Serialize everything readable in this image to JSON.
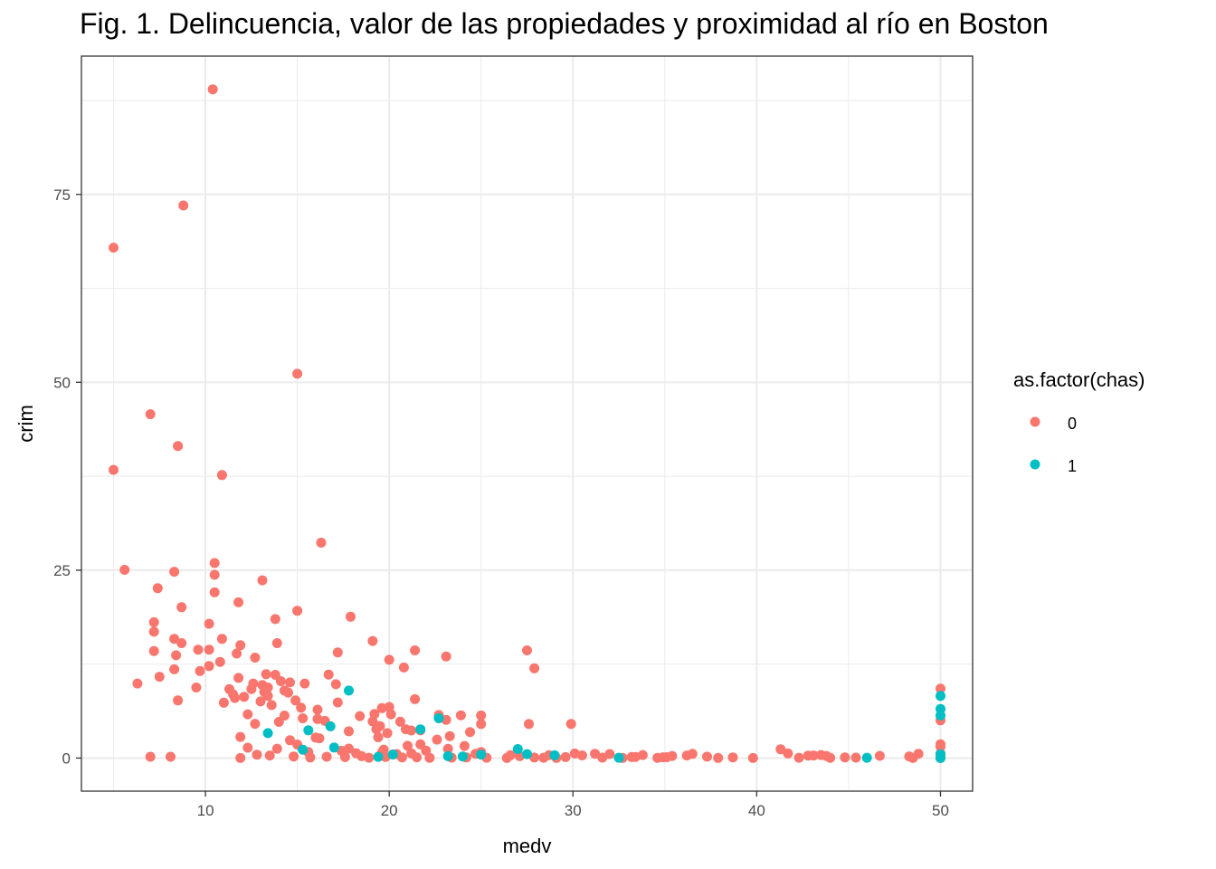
{
  "chart_data": {
    "type": "scatter",
    "title": "Fig. 1. Delincuencia, valor de las propiedades y proximidad al río en Boston",
    "xlabel": "medv",
    "ylabel": "crim",
    "xlim": [
      3.25,
      51.75
    ],
    "ylim": [
      -4.4,
      93.4
    ],
    "x_ticks": [
      10,
      20,
      30,
      40,
      50
    ],
    "y_ticks": [
      0,
      25,
      50,
      75
    ],
    "grid": true,
    "legend": {
      "title": "as.factor(chas)",
      "position": "right",
      "entries": [
        "0",
        "1"
      ]
    },
    "colors": {
      "0": "#F8766D",
      "1": "#00BFC4"
    },
    "series": [
      {
        "name": "0",
        "points": [
          [
            10.4,
            88.98
          ],
          [
            8.8,
            73.53
          ],
          [
            5.0,
            67.92
          ],
          [
            15.0,
            51.14
          ],
          [
            7.0,
            45.75
          ],
          [
            8.5,
            41.53
          ],
          [
            5.0,
            38.35
          ],
          [
            10.9,
            37.66
          ],
          [
            16.3,
            28.66
          ],
          [
            10.5,
            25.95
          ],
          [
            5.6,
            25.05
          ],
          [
            8.3,
            24.8
          ],
          [
            10.5,
            24.39
          ],
          [
            13.1,
            23.65
          ],
          [
            7.4,
            22.6
          ],
          [
            10.5,
            22.05
          ],
          [
            11.8,
            20.72
          ],
          [
            8.7,
            20.08
          ],
          [
            15.0,
            19.61
          ],
          [
            17.9,
            18.81
          ],
          [
            13.8,
            18.5
          ],
          [
            7.2,
            18.08
          ],
          [
            10.2,
            17.87
          ],
          [
            7.2,
            16.81
          ],
          [
            8.3,
            15.87
          ],
          [
            10.9,
            15.86
          ],
          [
            19.1,
            15.58
          ],
          [
            8.7,
            15.29
          ],
          [
            13.9,
            15.29
          ],
          [
            11.9,
            15.02
          ],
          [
            27.5,
            14.33
          ],
          [
            7.2,
            14.24
          ],
          [
            9.6,
            14.42
          ],
          [
            10.2,
            14.42
          ],
          [
            21.4,
            14.33
          ],
          [
            11.7,
            13.91
          ],
          [
            17.2,
            14.05
          ],
          [
            23.1,
            13.52
          ],
          [
            8.4,
            13.68
          ],
          [
            12.7,
            13.36
          ],
          [
            20.0,
            13.08
          ],
          [
            10.2,
            12.25
          ],
          [
            20.8,
            12.05
          ],
          [
            10.8,
            12.8
          ],
          [
            27.9,
            11.95
          ],
          [
            8.3,
            11.81
          ],
          [
            9.7,
            11.58
          ],
          [
            13.3,
            11.16
          ],
          [
            16.7,
            11.11
          ],
          [
            13.8,
            11.08
          ],
          [
            11.8,
            10.67
          ],
          [
            7.5,
            10.83
          ],
          [
            14.1,
            10.23
          ],
          [
            14.6,
            10.06
          ],
          [
            12.6,
            9.92
          ],
          [
            6.3,
            9.92
          ],
          [
            17.1,
            9.82
          ],
          [
            13.1,
            9.72
          ],
          [
            15.4,
            9.92
          ],
          [
            13.4,
            9.39
          ],
          [
            11.3,
            9.17
          ],
          [
            12.5,
            9.19
          ],
          [
            14.3,
            8.98
          ],
          [
            9.5,
            9.39
          ],
          [
            13.2,
            8.79
          ],
          [
            14.5,
            8.72
          ],
          [
            11.5,
            8.49
          ],
          [
            12.1,
            8.15
          ],
          [
            13.4,
            8.27
          ],
          [
            11.6,
            7.99
          ],
          [
            14.9,
            7.67
          ],
          [
            8.5,
            7.67
          ],
          [
            11.0,
            7.37
          ],
          [
            17.2,
            7.4
          ],
          [
            13.0,
            7.53
          ],
          [
            13.6,
            7.05
          ],
          [
            21.4,
            7.84
          ],
          [
            15.2,
            6.71
          ],
          [
            16.1,
            6.44
          ],
          [
            19.6,
            6.65
          ],
          [
            20.0,
            6.8
          ],
          [
            18.4,
            5.58
          ],
          [
            19.2,
            5.87
          ],
          [
            20.1,
            5.82
          ],
          [
            22.7,
            5.73
          ],
          [
            23.9,
            5.69
          ],
          [
            25.0,
            5.67
          ],
          [
            12.3,
            5.82
          ],
          [
            14.3,
            5.66
          ],
          [
            16.1,
            5.2
          ],
          [
            15.3,
            5.29
          ],
          [
            19.1,
            4.87
          ],
          [
            20.6,
            4.84
          ],
          [
            23.1,
            5.09
          ],
          [
            16.5,
            4.95
          ],
          [
            12.7,
            4.56
          ],
          [
            27.6,
            4.54
          ],
          [
            29.9,
            4.55
          ],
          [
            25.0,
            4.54
          ],
          [
            21.7,
            3.69
          ],
          [
            19.5,
            4.26
          ],
          [
            17.8,
            3.56
          ],
          [
            20.9,
            3.84
          ],
          [
            19.3,
            3.84
          ],
          [
            21.2,
            3.67
          ],
          [
            19.9,
            3.32
          ],
          [
            24.4,
            3.47
          ],
          [
            14.0,
            4.81
          ],
          [
            23.3,
            2.92
          ],
          [
            19.4,
            2.77
          ],
          [
            16.0,
            2.73
          ],
          [
            14.6,
            2.37
          ],
          [
            12.3,
            1.38
          ],
          [
            17.8,
            1.26
          ],
          [
            19.7,
            1.13
          ],
          [
            16.2,
            2.63
          ],
          [
            24.1,
            1.61
          ],
          [
            11.9,
            2.81
          ],
          [
            22.6,
            2.45
          ],
          [
            15.0,
            1.8
          ],
          [
            21.7,
            1.83
          ],
          [
            23.2,
            1.23
          ],
          [
            21.0,
            1.63
          ],
          [
            13.9,
            1.25
          ],
          [
            25.0,
            0.81
          ],
          [
            20.4,
            0.54
          ],
          [
            21.2,
            0.63
          ],
          [
            18.2,
            0.65
          ],
          [
            19.6,
            0.72
          ],
          [
            17.4,
            0.97
          ],
          [
            15.6,
            0.8
          ],
          [
            22.0,
            0.98
          ],
          [
            24.7,
            0.57
          ],
          [
            30.1,
            0.61
          ],
          [
            26.6,
            0.38
          ],
          [
            31.2,
            0.57
          ],
          [
            32.0,
            0.54
          ],
          [
            28.7,
            0.39
          ],
          [
            27.1,
            0.26
          ],
          [
            29.6,
            0.13
          ],
          [
            33.2,
            0.14
          ],
          [
            30.5,
            0.36
          ],
          [
            35.4,
            0.29
          ],
          [
            34.9,
            0.11
          ],
          [
            31.6,
            0.06
          ],
          [
            36.2,
            0.35
          ],
          [
            37.3,
            0.19
          ],
          [
            38.7,
            0.09
          ],
          [
            41.3,
            1.18
          ],
          [
            41.7,
            0.61
          ],
          [
            42.3,
            0.05
          ],
          [
            43.1,
            0.34
          ],
          [
            43.5,
            0.41
          ],
          [
            44.0,
            0.03
          ],
          [
            45.4,
            0.06
          ],
          [
            46.7,
            0.3
          ],
          [
            48.3,
            0.23
          ],
          [
            48.8,
            0.58
          ],
          [
            36.5,
            0.56
          ],
          [
            37.9,
            0.02
          ],
          [
            39.8,
            0.01
          ],
          [
            42.8,
            0.33
          ],
          [
            43.8,
            0.29
          ],
          [
            44.8,
            0.09
          ],
          [
            48.5,
            0.01
          ],
          [
            33.4,
            0.15
          ],
          [
            32.7,
            0.02
          ],
          [
            33.8,
            0.4
          ],
          [
            34.6,
            0.03
          ],
          [
            35.1,
            0.12
          ],
          [
            29.1,
            0.02
          ],
          [
            28.4,
            0.05
          ],
          [
            27.9,
            0.07
          ],
          [
            26.4,
            0.01
          ],
          [
            25.3,
            0.04
          ],
          [
            24.2,
            0.08
          ],
          [
            23.4,
            0.06
          ],
          [
            22.2,
            0.03
          ],
          [
            21.5,
            0.11
          ],
          [
            20.7,
            0.09
          ],
          [
            19.8,
            0.15
          ],
          [
            18.9,
            0.04
          ],
          [
            18.5,
            0.26
          ],
          [
            17.6,
            0.13
          ],
          [
            16.6,
            0.18
          ],
          [
            15.7,
            0.08
          ],
          [
            14.8,
            0.21
          ],
          [
            13.5,
            0.35
          ],
          [
            12.8,
            0.45
          ],
          [
            11.9,
            0.01
          ],
          [
            7.0,
            0.18
          ],
          [
            8.1,
            0.18
          ],
          [
            50.0,
            9.23
          ],
          [
            50.0,
            5.02
          ],
          [
            50.0,
            1.84
          ],
          [
            50.0,
            1.51
          ],
          [
            50.0,
            0.61
          ],
          [
            50.0,
            0.05
          ],
          [
            50.0,
            0.02
          ]
        ]
      },
      {
        "name": "1",
        "points": [
          [
            13.4,
            3.32
          ],
          [
            17.8,
            8.98
          ],
          [
            15.6,
            3.69
          ],
          [
            16.8,
            4.22
          ],
          [
            17.0,
            1.41
          ],
          [
            27.0,
            1.2
          ],
          [
            22.7,
            5.29
          ],
          [
            21.7,
            3.83
          ],
          [
            15.3,
            1.12
          ],
          [
            27.5,
            0.53
          ],
          [
            29.0,
            0.37
          ],
          [
            32.5,
            0.05
          ],
          [
            46.0,
            0.04
          ],
          [
            25.0,
            0.46
          ],
          [
            24.0,
            0.21
          ],
          [
            23.2,
            0.25
          ],
          [
            20.2,
            0.48
          ],
          [
            19.4,
            0.17
          ],
          [
            50.0,
            8.27
          ],
          [
            50.0,
            6.54
          ],
          [
            50.0,
            5.67
          ],
          [
            50.0,
            0.52
          ],
          [
            50.0,
            0.01
          ]
        ]
      }
    ]
  }
}
